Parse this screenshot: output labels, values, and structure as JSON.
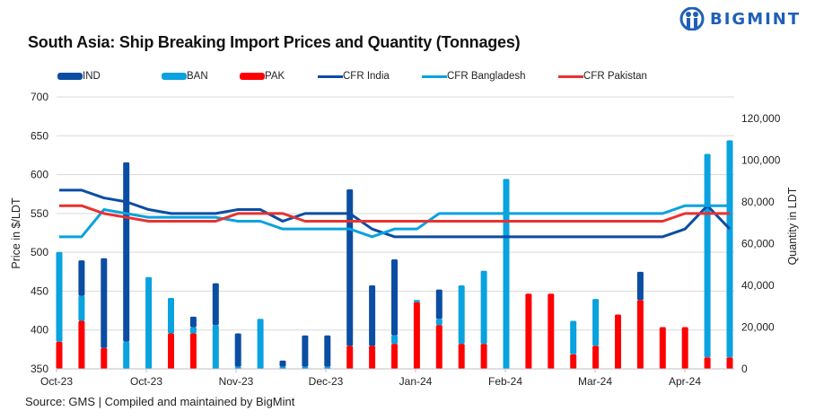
{
  "header": {
    "title": "South Asia: Ship Breaking Import Prices and Quantity (Tonnages)",
    "logo_text": "BIGMINT"
  },
  "legend": [
    {
      "label": "IND",
      "kind": "bar",
      "color": "#0b4da2"
    },
    {
      "label": "BAN",
      "kind": "bar",
      "color": "#0aa2df"
    },
    {
      "label": "PAK",
      "kind": "bar",
      "color": "#ff0000"
    },
    {
      "label": "CFR India",
      "kind": "line",
      "color": "#0b4da2"
    },
    {
      "label": "CFR Bangladesh",
      "kind": "line",
      "color": "#0aa2df"
    },
    {
      "label": "CFR Pakistan",
      "kind": "line",
      "color": "#e8322f"
    }
  ],
  "footer": {
    "source": "Source: GMS | Compiled and maintained by BigMint"
  },
  "chart_data": {
    "type": "bar+line",
    "title": "South Asia: Ship Breaking Import Prices and Quantity (Tonnages)",
    "ylabel": "Price in $/LDT",
    "y2label": "Quantity in LDT",
    "ylim": [
      350,
      700
    ],
    "yticks": [
      350,
      400,
      450,
      500,
      550,
      600,
      650,
      700
    ],
    "y2lim": [
      0,
      130000
    ],
    "y2ticks": [
      "0",
      "20,000",
      "40,000",
      "60,000",
      "80,000",
      "100,000",
      "120,000"
    ],
    "y2tick_values": [
      0,
      20000,
      40000,
      60000,
      80000,
      100000,
      120000
    ],
    "grid": true,
    "legend_position": "top",
    "x_tick_labels": [
      "Oct-23",
      "Oct-23",
      "Nov-23",
      "Dec-23",
      "Jan-24",
      "Feb-24",
      "Mar-24",
      "Apr-24"
    ],
    "x_tick_every": 4,
    "n_periods": 31,
    "stacked_bars": [
      {
        "name": "PAK",
        "color": "#ff0000",
        "axis": "y2",
        "values": [
          13000,
          23000,
          10000,
          0,
          0,
          17000,
          17000,
          0,
          0,
          0,
          0,
          0,
          0,
          11000,
          11000,
          12000,
          32000,
          21000,
          12000,
          12000,
          0,
          36000,
          36000,
          7000,
          11000,
          26000,
          33000,
          20000,
          20000,
          5500,
          5500
        ]
      },
      {
        "name": "BAN",
        "color": "#0aa2df",
        "axis": "y2",
        "values": [
          43000,
          12000,
          0,
          13000,
          44000,
          17000,
          3000,
          21000,
          1000,
          24000,
          1000,
          1000,
          1000,
          0,
          0,
          4000,
          1000,
          3000,
          28000,
          35000,
          91000,
          0,
          0,
          16000,
          22500,
          0,
          0,
          0,
          0,
          97500,
          104000
        ]
      },
      {
        "name": "IND",
        "color": "#0b4da2",
        "axis": "y2",
        "values": [
          0,
          17000,
          43000,
          86000,
          0,
          0,
          5000,
          20000,
          16000,
          0,
          3000,
          15000,
          15000,
          75000,
          29000,
          36500,
          0,
          14000,
          0,
          0,
          0,
          0,
          0,
          0,
          0,
          0,
          13500,
          0,
          0,
          0,
          0
        ]
      }
    ],
    "lines": [
      {
        "name": "CFR India",
        "color": "#0b4da2",
        "axis": "y",
        "values": [
          580,
          580,
          570,
          565,
          555,
          550,
          550,
          550,
          555,
          555,
          540,
          550,
          550,
          550,
          530,
          520,
          520,
          520,
          520,
          520,
          520,
          520,
          520,
          520,
          520,
          520,
          520,
          520,
          530,
          560,
          530
        ]
      },
      {
        "name": "CFR Bangladesh",
        "color": "#0aa2df",
        "axis": "y",
        "values": [
          520,
          520,
          555,
          550,
          545,
          545,
          545,
          545,
          540,
          540,
          530,
          530,
          530,
          530,
          520,
          530,
          530,
          550,
          550,
          550,
          550,
          550,
          550,
          550,
          550,
          550,
          550,
          550,
          560,
          560,
          560
        ]
      },
      {
        "name": "CFR Pakistan",
        "color": "#e8322f",
        "axis": "y",
        "values": [
          560,
          560,
          550,
          545,
          540,
          540,
          540,
          540,
          550,
          550,
          550,
          540,
          540,
          540,
          540,
          540,
          540,
          540,
          540,
          540,
          540,
          540,
          540,
          540,
          540,
          540,
          540,
          540,
          550,
          550,
          550
        ]
      }
    ]
  }
}
